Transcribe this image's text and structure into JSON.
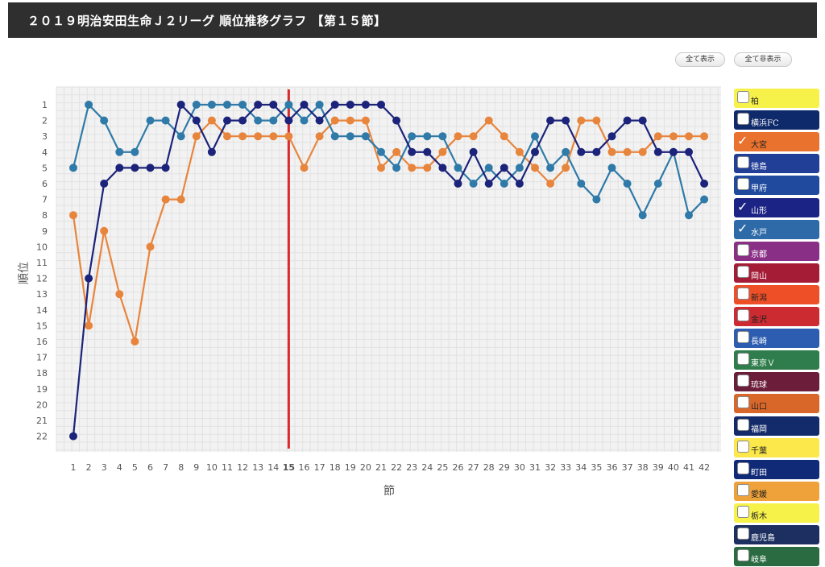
{
  "header": {
    "title": "２０１９明治安田生命Ｊ２リーグ 順位推移グラフ 【第１５節】"
  },
  "controls": {
    "show_all": "全て表示",
    "hide_all": "全て非表示"
  },
  "legend": [
    {
      "label": "柏",
      "color": "#f7f24a",
      "text_color": "#222222",
      "checked": false
    },
    {
      "label": "横浜FC",
      "color": "#0f2a6b",
      "text_color": "#ffffff",
      "checked": false
    },
    {
      "label": "大宮",
      "color": "#e8722e",
      "text_color": "#222222",
      "checked": true
    },
    {
      "label": "徳島",
      "color": "#213f96",
      "text_color": "#ffffff",
      "checked": false
    },
    {
      "label": "甲府",
      "color": "#1f4a9e",
      "text_color": "#ffffff",
      "checked": false
    },
    {
      "label": "山形",
      "color": "#1b2384",
      "text_color": "#ffffff",
      "checked": true
    },
    {
      "label": "水戸",
      "color": "#2f6aa8",
      "text_color": "#ffffff",
      "checked": true
    },
    {
      "label": "京都",
      "color": "#8a2f86",
      "text_color": "#ffffff",
      "checked": false
    },
    {
      "label": "岡山",
      "color": "#a51c37",
      "text_color": "#ffffff",
      "checked": false
    },
    {
      "label": "新潟",
      "color": "#ee4f26",
      "text_color": "#222222",
      "checked": false
    },
    {
      "label": "金沢",
      "color": "#cc2b32",
      "text_color": "#222222",
      "checked": false
    },
    {
      "label": "長崎",
      "color": "#2c5db0",
      "text_color": "#ffffff",
      "checked": false
    },
    {
      "label": "東京Ｖ",
      "color": "#2f7d4c",
      "text_color": "#ffffff",
      "checked": false
    },
    {
      "label": "琉球",
      "color": "#6b1d3a",
      "text_color": "#ffffff",
      "checked": false
    },
    {
      "label": "山口",
      "color": "#d9672a",
      "text_color": "#222222",
      "checked": false
    },
    {
      "label": "福岡",
      "color": "#142b6b",
      "text_color": "#ffffff",
      "checked": false
    },
    {
      "label": "千葉",
      "color": "#fce84a",
      "text_color": "#222222",
      "checked": false
    },
    {
      "label": "町田",
      "color": "#102a78",
      "text_color": "#ffffff",
      "checked": false
    },
    {
      "label": "愛媛",
      "color": "#f0a23a",
      "text_color": "#222222",
      "checked": false
    },
    {
      "label": "栃木",
      "color": "#f7f24a",
      "text_color": "#222222",
      "checked": false
    },
    {
      "label": "鹿児島",
      "color": "#1c2f60",
      "text_color": "#ffffff",
      "checked": false
    },
    {
      "label": "岐阜",
      "color": "#2a6b42",
      "text_color": "#ffffff",
      "checked": false
    }
  ],
  "chart_data": {
    "type": "line",
    "title": "",
    "xlabel": "節",
    "ylabel": "順位",
    "x": [
      1,
      2,
      3,
      4,
      5,
      6,
      7,
      8,
      9,
      10,
      11,
      12,
      13,
      14,
      15,
      16,
      17,
      18,
      19,
      20,
      21,
      22,
      23,
      24,
      25,
      26,
      27,
      28,
      29,
      30,
      31,
      32,
      33,
      34,
      35,
      36,
      37,
      38,
      39,
      40,
      41,
      42
    ],
    "ylim": [
      1,
      22
    ],
    "y_inverted": true,
    "grid": true,
    "current_round": 15,
    "current_round_color": "#d92b2b",
    "series": [
      {
        "name": "大宮",
        "color": "#e8853d",
        "values": [
          8,
          15,
          9,
          13,
          16,
          10,
          7,
          7,
          3,
          2,
          3,
          3,
          3,
          3,
          3,
          5,
          3,
          2,
          2,
          2,
          5,
          4,
          5,
          5,
          4,
          3,
          3,
          2,
          3,
          4,
          5,
          6,
          5,
          2,
          2,
          4,
          4,
          4,
          3,
          3,
          3,
          3
        ]
      },
      {
        "name": "水戸",
        "color": "#2f7aa8",
        "values": [
          5,
          1,
          2,
          4,
          4,
          2,
          2,
          3,
          1,
          1,
          1,
          1,
          2,
          2,
          1,
          2,
          1,
          3,
          3,
          3,
          4,
          5,
          3,
          3,
          3,
          5,
          6,
          5,
          6,
          5,
          3,
          5,
          4,
          6,
          7,
          5,
          6,
          8,
          6,
          4,
          8,
          7
        ]
      },
      {
        "name": "山形",
        "color": "#1b237a",
        "values": [
          22,
          12,
          6,
          5,
          5,
          5,
          5,
          1,
          2,
          4,
          2,
          2,
          1,
          1,
          2,
          1,
          2,
          1,
          1,
          1,
          1,
          2,
          4,
          4,
          5,
          6,
          4,
          6,
          5,
          6,
          4,
          2,
          2,
          4,
          4,
          3,
          2,
          2,
          4,
          4,
          4,
          6
        ]
      }
    ]
  }
}
